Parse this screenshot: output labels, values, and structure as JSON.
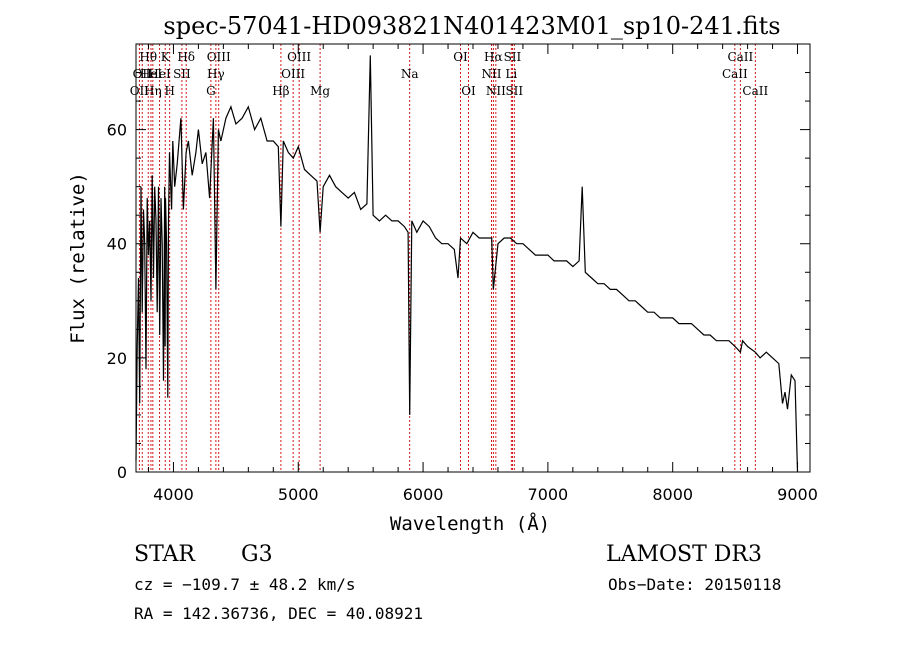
{
  "chart_data": {
    "type": "line",
    "title": "spec-57041-HD093821N401423M01_sp10-241.fits",
    "xlabel": "Wavelength (Å)",
    "ylabel": "Flux (relative)",
    "xlim": [
      3700,
      9100
    ],
    "ylim": [
      0,
      75
    ],
    "xticks": [
      4000,
      5000,
      6000,
      7000,
      8000,
      9000
    ],
    "xtick_labels": [
      "4000",
      "5000",
      "6000",
      "7000",
      "8000",
      "9000"
    ],
    "yticks": [
      0,
      20,
      40,
      60
    ],
    "ytick_labels": [
      "0",
      "20",
      "40",
      "60"
    ],
    "series": [
      {
        "name": "spectrum",
        "x": [
          3700,
          3710,
          3720,
          3730,
          3740,
          3750,
          3760,
          3770,
          3780,
          3790,
          3800,
          3810,
          3820,
          3830,
          3840,
          3850,
          3860,
          3870,
          3880,
          3890,
          3900,
          3910,
          3920,
          3930,
          3933,
          3936,
          3945,
          3955,
          3960,
          3968,
          3975,
          3985,
          3995,
          4010,
          4030,
          4060,
          4080,
          4101,
          4120,
          4150,
          4180,
          4200,
          4230,
          4260,
          4290,
          4320,
          4340,
          4360,
          4380,
          4420,
          4460,
          4500,
          4550,
          4600,
          4650,
          4700,
          4750,
          4800,
          4840,
          4861,
          4880,
          4920,
          4960,
          5000,
          5050,
          5100,
          5150,
          5175,
          5200,
          5250,
          5300,
          5350,
          5400,
          5450,
          5500,
          5550,
          5577,
          5600,
          5650,
          5700,
          5750,
          5800,
          5850,
          5880,
          5893,
          5910,
          5950,
          6000,
          6050,
          6100,
          6150,
          6200,
          6250,
          6280,
          6300,
          6350,
          6400,
          6450,
          6500,
          6550,
          6563,
          6600,
          6650,
          6700,
          6750,
          6800,
          6850,
          6900,
          6950,
          7000,
          7050,
          7100,
          7150,
          7200,
          7250,
          7275,
          7300,
          7350,
          7400,
          7450,
          7500,
          7550,
          7600,
          7650,
          7700,
          7750,
          7800,
          7850,
          7900,
          7950,
          8000,
          8050,
          8100,
          8150,
          8200,
          8250,
          8300,
          8350,
          8400,
          8450,
          8500,
          8542,
          8560,
          8600,
          8662,
          8700,
          8750,
          8800,
          8850,
          8880,
          8900,
          8920,
          8950,
          8980,
          9000
        ],
        "values": [
          2,
          22,
          34,
          12,
          50,
          28,
          46,
          40,
          18,
          48,
          38,
          44,
          30,
          52,
          34,
          50,
          44,
          28,
          50,
          24,
          48,
          40,
          16,
          50,
          22,
          48,
          40,
          13,
          44,
          56,
          52,
          46,
          58,
          50,
          54,
          62,
          46,
          56,
          58,
          52,
          56,
          60,
          54,
          56,
          48,
          62,
          32,
          60,
          58,
          62,
          64,
          61,
          62,
          64,
          60,
          62,
          58,
          58,
          57,
          43,
          58,
          56,
          55,
          57,
          53,
          52,
          51,
          42,
          50,
          52,
          50,
          49,
          48,
          49,
          46,
          47,
          73,
          45,
          44,
          45,
          44,
          44,
          43,
          42,
          10,
          44,
          42,
          44,
          43,
          41,
          40,
          40,
          39,
          34,
          41,
          40,
          42,
          41,
          41,
          41,
          32,
          40,
          41,
          41,
          40,
          40,
          39,
          38,
          38,
          38,
          37,
          37,
          37,
          36,
          37,
          50,
          35,
          34,
          33,
          33,
          32,
          32,
          31,
          30,
          30,
          29,
          28,
          28,
          27,
          27,
          27,
          26,
          26,
          26,
          25,
          24,
          24,
          23,
          23,
          23,
          22,
          21,
          23,
          22,
          21,
          20,
          21,
          20,
          19,
          12,
          14,
          11,
          17,
          16,
          0
        ]
      }
    ],
    "spectral_lines": [
      {
        "wavelength": 3727,
        "label": "OII",
        "row": 3
      },
      {
        "wavelength": 3750,
        "label": "OII",
        "row": 2
      },
      {
        "wavelength": 3798,
        "label": "Hθ",
        "row": 1
      },
      {
        "wavelength": 3820,
        "label": "HeI",
        "row": 2
      },
      {
        "wavelength": 3835,
        "label": "Hη",
        "row": 3
      },
      {
        "wavelength": 3889,
        "label": "HeI",
        "row": 2
      },
      {
        "wavelength": 3934,
        "label": "K",
        "row": 1
      },
      {
        "wavelength": 3970,
        "label": "H",
        "row": 3
      },
      {
        "wavelength": 4068,
        "label": "SII",
        "row": 2
      },
      {
        "wavelength": 4102,
        "label": "Hδ",
        "row": 1
      },
      {
        "wavelength": 4300,
        "label": "G",
        "row": 3
      },
      {
        "wavelength": 4340,
        "label": "Hγ",
        "row": 2
      },
      {
        "wavelength": 4363,
        "label": "OIII",
        "row": 1
      },
      {
        "wavelength": 4861,
        "label": "Hβ",
        "row": 3
      },
      {
        "wavelength": 4959,
        "label": "OIII",
        "row": 2
      },
      {
        "wavelength": 5007,
        "label": "OIII",
        "row": 1
      },
      {
        "wavelength": 5175,
        "label": "Mg",
        "row": 3
      },
      {
        "wavelength": 5893,
        "label": "Na",
        "row": 2
      },
      {
        "wavelength": 6300,
        "label": "OI",
        "row": 1
      },
      {
        "wavelength": 6364,
        "label": "OI",
        "row": 3
      },
      {
        "wavelength": 6548,
        "label": "NII",
        "row": 2
      },
      {
        "wavelength": 6563,
        "label": "Hα",
        "row": 1
      },
      {
        "wavelength": 6583,
        "label": "NII",
        "row": 3
      },
      {
        "wavelength": 6707,
        "label": "Li",
        "row": 2
      },
      {
        "wavelength": 6716,
        "label": "SII",
        "row": 1
      },
      {
        "wavelength": 6731,
        "label": "SII",
        "row": 3
      },
      {
        "wavelength": 8498,
        "label": "CaII",
        "row": 2
      },
      {
        "wavelength": 8542,
        "label": "CaII",
        "row": 1
      },
      {
        "wavelength": 8662,
        "label": "CaII",
        "row": 3
      }
    ]
  },
  "info": {
    "object_class": "STAR",
    "subclass": "G3",
    "survey": "LAMOST DR3",
    "cz": "cz = −109.7 ± 48.2 km/s",
    "obs_date": "Obs−Date: 20150118",
    "coords": "RA = 142.36736, DEC =  40.08921"
  }
}
